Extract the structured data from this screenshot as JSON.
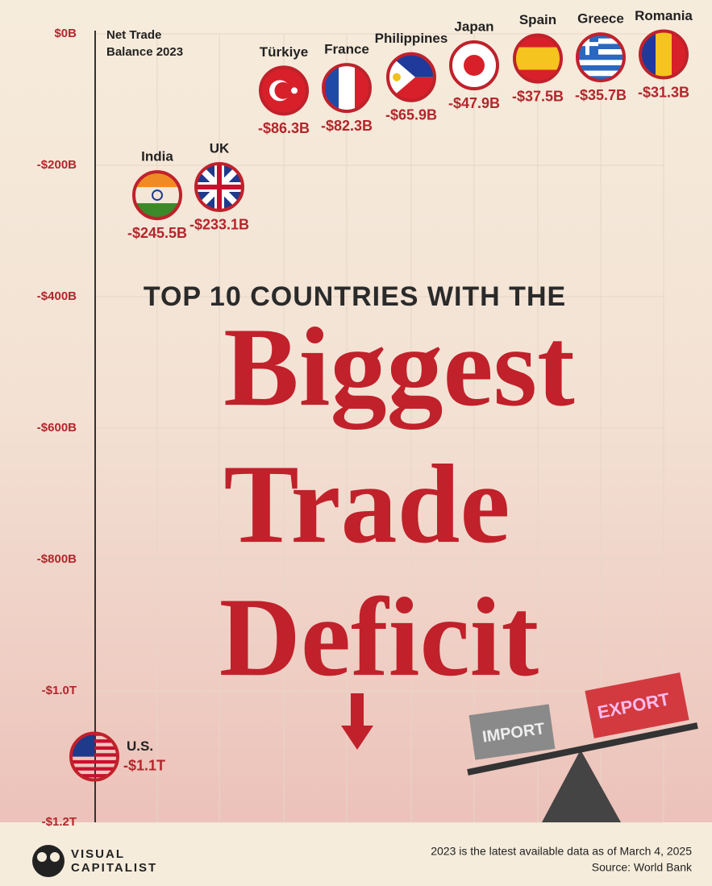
{
  "chart_data": {
    "type": "dot",
    "title": "TOP 10 COUNTRIES WITH THE",
    "headline": [
      "Biggest",
      "Trade",
      "Deficit"
    ],
    "y_label": "Net Trade Balance 2023",
    "categories": [
      "U.S.",
      "India",
      "UK",
      "Türkiye",
      "France",
      "Philippines",
      "Japan",
      "Spain",
      "Greece",
      "Romania"
    ],
    "values": [
      -1100,
      -245.5,
      -233.1,
      -86.3,
      -82.3,
      -65.9,
      -47.9,
      -37.5,
      -35.7,
      -31.3
    ],
    "value_labels": [
      "-$1.1T",
      "-$245.5B",
      "-$233.1B",
      "-$86.3B",
      "-$82.3B",
      "-$65.9B",
      "-$47.9B",
      "-$37.5B",
      "-$35.7B",
      "-$31.3B"
    ],
    "ylim": [
      -1200,
      0
    ],
    "yticks": [
      {
        "value": 0,
        "label": "$0B"
      },
      {
        "value": -200,
        "label": "-$200B"
      },
      {
        "value": -400,
        "label": "-$400B"
      },
      {
        "value": -600,
        "label": "-$600B"
      },
      {
        "value": -800,
        "label": "-$800B"
      },
      {
        "value": -1000,
        "label": "-$1.0T"
      },
      {
        "value": -1200,
        "label": "-$1.2T"
      }
    ],
    "grid": true,
    "color": "#c0212b",
    "illustration": [
      "IMPORT",
      "EXPORT"
    ],
    "note": "2023 is the latest available data as of March 4, 2025",
    "source": "Source: World Bank",
    "logo": [
      "VISUAL",
      "CAPITALIST"
    ]
  }
}
